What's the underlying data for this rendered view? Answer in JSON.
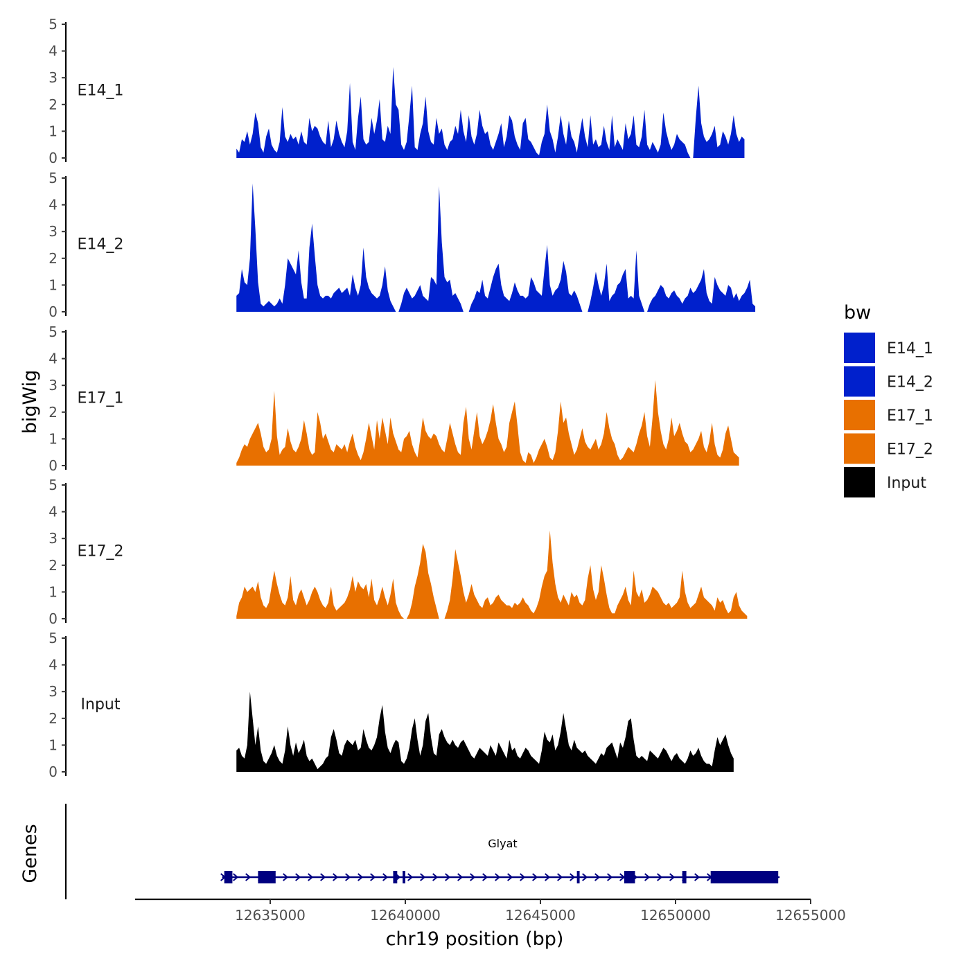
{
  "chart_data": {
    "type": "area",
    "title": "",
    "xlabel": "chr19 position (bp)",
    "ylabel": "bigWig",
    "genes_label": "Genes",
    "xlim": [
      12630000,
      12655000
    ],
    "x_ticks": [
      12635000,
      12640000,
      12645000,
      12650000,
      12655000
    ],
    "x_tick_labels": [
      "12635000",
      "12640000",
      "12645000",
      "12650000",
      "12655000"
    ],
    "ylim": [
      0,
      5
    ],
    "y_ticks": [
      0,
      1,
      2,
      3,
      4,
      5
    ],
    "y_tick_labels": [
      "0",
      "1",
      "2",
      "3",
      "4",
      "5"
    ],
    "step_bp": 100,
    "legend": {
      "title": "bw",
      "entries": [
        {
          "label": "E14_1",
          "color": "#0020CC"
        },
        {
          "label": "E14_2",
          "color": "#0020CC"
        },
        {
          "label": "E17_1",
          "color": "#E87000"
        },
        {
          "label": "E17_2",
          "color": "#E87000"
        },
        {
          "label": "Input",
          "color": "#000000"
        }
      ]
    },
    "series": [
      {
        "name": "E14_1",
        "color": "#0020CC",
        "x_start": 12633750,
        "values": [
          0.35,
          0.2,
          0.7,
          0.6,
          1.0,
          0.5,
          0.9,
          1.7,
          1.3,
          0.4,
          0.2,
          0.8,
          1.1,
          0.5,
          0.3,
          0.2,
          0.6,
          1.9,
          0.8,
          0.6,
          0.9,
          0.7,
          0.8,
          0.5,
          1.0,
          0.6,
          0.5,
          1.5,
          1.0,
          1.2,
          1.1,
          0.8,
          0.6,
          0.5,
          1.4,
          0.4,
          0.7,
          1.4,
          0.9,
          0.6,
          0.4,
          1.0,
          2.8,
          0.6,
          0.3,
          1.5,
          2.3,
          0.7,
          0.5,
          0.6,
          1.5,
          0.9,
          1.4,
          2.2,
          0.7,
          0.6,
          1.2,
          0.9,
          3.4,
          2.0,
          1.8,
          0.5,
          0.3,
          0.6,
          1.6,
          2.7,
          0.4,
          0.3,
          0.9,
          1.3,
          2.3,
          1.0,
          0.6,
          0.5,
          1.5,
          0.9,
          1.1,
          0.5,
          0.3,
          0.6,
          0.7,
          1.2,
          0.9,
          1.8,
          1.0,
          0.6,
          1.6,
          0.8,
          0.5,
          0.9,
          1.8,
          1.2,
          0.9,
          1.0,
          0.5,
          0.3,
          0.6,
          0.9,
          1.3,
          0.4,
          0.8,
          1.6,
          1.4,
          0.8,
          0.5,
          0.3,
          1.3,
          1.5,
          0.7,
          0.6,
          0.4,
          0.2,
          0.1,
          0.6,
          0.9,
          2.0,
          1.0,
          0.7,
          0.2,
          0.8,
          1.6,
          0.9,
          0.5,
          1.4,
          0.8,
          0.6,
          0.2,
          0.9,
          1.5,
          0.8,
          0.4,
          1.6,
          0.5,
          0.7,
          0.4,
          0.5,
          1.2,
          0.6,
          0.3,
          1.6,
          0.4,
          0.7,
          0.5,
          0.3,
          1.3,
          0.7,
          0.9,
          1.6,
          0.5,
          0.4,
          0.8,
          1.8,
          0.5,
          0.3,
          0.6,
          0.4,
          0.2,
          0.5,
          1.7,
          1.0,
          0.6,
          0.3,
          0.5,
          0.9,
          0.7,
          0.6,
          0.5,
          0.2,
          0.0,
          0.0,
          1.5,
          2.7,
          1.3,
          0.8,
          0.6,
          0.7,
          0.9,
          1.2,
          0.4,
          0.5,
          1.0,
          0.8,
          0.5,
          0.9,
          1.6,
          0.9,
          0.6,
          0.8,
          0.7
        ]
      },
      {
        "name": "E14_2",
        "color": "#0020CC",
        "x_start": 12633750,
        "values": [
          0.6,
          0.7,
          1.6,
          1.1,
          1.0,
          2.0,
          4.8,
          3.1,
          1.1,
          0.3,
          0.2,
          0.3,
          0.4,
          0.3,
          0.2,
          0.3,
          0.5,
          0.3,
          1.0,
          2.0,
          1.8,
          1.6,
          1.4,
          2.3,
          1.1,
          0.5,
          0.5,
          2.4,
          3.3,
          2.1,
          1.0,
          0.6,
          0.5,
          0.6,
          0.6,
          0.5,
          0.7,
          0.8,
          0.9,
          0.7,
          0.8,
          0.9,
          0.6,
          1.4,
          0.9,
          0.6,
          1.0,
          2.4,
          1.3,
          0.9,
          0.7,
          0.6,
          0.5,
          0.6,
          1.0,
          1.7,
          0.8,
          0.4,
          0.2,
          0.0,
          0.0,
          0.3,
          0.7,
          0.9,
          0.7,
          0.5,
          0.6,
          0.8,
          1.0,
          0.6,
          0.5,
          0.4,
          1.3,
          1.2,
          1.0,
          4.7,
          2.6,
          1.3,
          1.1,
          1.2,
          0.6,
          0.7,
          0.5,
          0.3,
          0.0,
          0.0,
          0.0,
          0.3,
          0.5,
          0.8,
          0.7,
          1.2,
          0.6,
          0.5,
          0.9,
          1.3,
          1.6,
          1.8,
          1.0,
          0.6,
          0.5,
          0.4,
          0.7,
          1.1,
          0.8,
          0.6,
          0.6,
          0.5,
          0.6,
          1.3,
          1.1,
          0.8,
          0.7,
          0.6,
          1.6,
          2.5,
          1.0,
          0.6,
          0.8,
          0.9,
          1.2,
          1.9,
          1.5,
          0.7,
          0.6,
          0.8,
          0.6,
          0.3,
          0.0,
          0.0,
          0.0,
          0.4,
          0.9,
          1.5,
          1.0,
          0.6,
          1.0,
          1.8,
          0.4,
          0.6,
          0.7,
          1.0,
          1.1,
          1.4,
          1.6,
          0.5,
          0.6,
          0.5,
          2.3,
          0.6,
          0.3,
          0.0,
          0.0,
          0.3,
          0.5,
          0.6,
          0.8,
          1.0,
          0.9,
          0.6,
          0.5,
          0.7,
          0.8,
          0.6,
          0.5,
          0.3,
          0.5,
          0.6,
          0.9,
          0.7,
          0.8,
          1.0,
          1.2,
          1.6,
          0.7,
          0.4,
          0.3,
          1.3,
          1.0,
          0.8,
          0.7,
          0.6,
          1.0,
          0.9,
          0.5,
          0.7,
          0.4,
          0.6,
          0.7,
          0.9,
          1.2,
          0.3,
          0.2
        ]
      },
      {
        "name": "E17_1",
        "color": "#E87000",
        "x_start": 12633750,
        "values": [
          0.1,
          0.3,
          0.6,
          0.8,
          0.7,
          1.0,
          1.2,
          1.4,
          1.6,
          1.2,
          0.7,
          0.5,
          0.6,
          1.0,
          2.8,
          1.1,
          0.4,
          0.6,
          0.7,
          1.4,
          0.9,
          0.6,
          0.5,
          0.7,
          1.0,
          1.7,
          1.2,
          0.6,
          0.4,
          0.5,
          2.0,
          1.6,
          1.0,
          1.2,
          0.9,
          0.6,
          0.5,
          0.8,
          0.7,
          0.6,
          0.8,
          0.5,
          0.9,
          1.2,
          0.7,
          0.4,
          0.2,
          0.5,
          1.0,
          1.6,
          1.1,
          0.6,
          1.7,
          1.0,
          1.8,
          1.3,
          0.8,
          1.8,
          1.2,
          0.9,
          0.6,
          0.5,
          1.0,
          1.1,
          1.3,
          0.8,
          0.5,
          0.3,
          1.0,
          1.8,
          1.3,
          1.1,
          1.0,
          1.2,
          1.1,
          0.8,
          0.6,
          0.5,
          1.0,
          1.6,
          1.2,
          0.8,
          0.5,
          0.4,
          1.6,
          2.2,
          1.0,
          0.6,
          1.3,
          2.0,
          1.1,
          0.8,
          1.0,
          1.3,
          1.7,
          2.3,
          1.6,
          1.0,
          0.8,
          0.5,
          0.7,
          1.6,
          2.0,
          2.4,
          1.5,
          0.5,
          0.2,
          0.1,
          0.5,
          0.4,
          0.1,
          0.3,
          0.6,
          0.8,
          1.0,
          0.7,
          0.3,
          0.2,
          0.5,
          1.3,
          2.4,
          1.6,
          1.8,
          1.2,
          0.8,
          0.4,
          0.6,
          1.0,
          1.4,
          0.9,
          0.7,
          0.6,
          0.8,
          1.0,
          0.6,
          0.8,
          1.2,
          2.0,
          1.4,
          1.0,
          0.8,
          0.4,
          0.2,
          0.3,
          0.5,
          0.7,
          0.6,
          0.5,
          0.8,
          1.2,
          1.5,
          2.0,
          1.1,
          0.7,
          1.8,
          3.2,
          2.0,
          1.3,
          0.8,
          0.6,
          1.0,
          1.8,
          1.1,
          1.3,
          1.6,
          1.2,
          0.9,
          0.8,
          0.5,
          0.6,
          0.8,
          1.0,
          1.3,
          0.7,
          0.5,
          0.9,
          1.6,
          0.8,
          0.4,
          0.3,
          0.6,
          1.2,
          1.5,
          1.0,
          0.5,
          0.4,
          0.3
        ]
      },
      {
        "name": "E17_2",
        "color": "#E87000",
        "x_start": 12633750,
        "values": [
          0.1,
          0.6,
          0.8,
          1.2,
          1.0,
          1.1,
          1.2,
          1.0,
          1.4,
          0.8,
          0.5,
          0.4,
          0.6,
          1.2,
          1.8,
          1.3,
          0.9,
          0.6,
          0.5,
          0.8,
          1.6,
          0.7,
          0.5,
          0.9,
          1.1,
          0.8,
          0.5,
          0.7,
          1.0,
          1.2,
          1.0,
          0.7,
          0.5,
          0.4,
          0.6,
          1.2,
          0.5,
          0.3,
          0.4,
          0.5,
          0.6,
          0.8,
          1.1,
          1.6,
          1.0,
          1.4,
          1.2,
          1.1,
          1.3,
          0.8,
          1.5,
          0.7,
          0.5,
          0.8,
          1.2,
          0.8,
          0.5,
          0.9,
          1.5,
          0.6,
          0.3,
          0.1,
          0.0,
          0.0,
          0.2,
          0.6,
          1.2,
          1.6,
          2.1,
          2.8,
          2.5,
          1.7,
          1.3,
          0.8,
          0.4,
          0.0,
          0.0,
          0.0,
          0.3,
          0.7,
          1.5,
          2.6,
          2.1,
          1.6,
          1.0,
          0.6,
          0.9,
          1.3,
          0.9,
          0.7,
          0.5,
          0.4,
          0.7,
          0.8,
          0.5,
          0.6,
          0.8,
          0.9,
          0.7,
          0.6,
          0.5,
          0.5,
          0.4,
          0.6,
          0.5,
          0.6,
          0.8,
          0.6,
          0.5,
          0.3,
          0.2,
          0.4,
          0.7,
          1.2,
          1.6,
          1.8,
          3.3,
          2.1,
          1.3,
          0.8,
          0.6,
          0.9,
          0.7,
          0.5,
          1.0,
          0.8,
          0.9,
          0.6,
          0.5,
          0.7,
          1.5,
          2.0,
          1.1,
          0.7,
          1.0,
          2.0,
          1.5,
          0.9,
          0.4,
          0.2,
          0.2,
          0.5,
          0.7,
          0.9,
          1.2,
          0.7,
          0.5,
          1.8,
          1.0,
          0.8,
          1.1,
          0.6,
          0.7,
          0.9,
          1.2,
          1.1,
          1.0,
          0.8,
          0.6,
          0.5,
          0.6,
          0.4,
          0.5,
          0.6,
          0.8,
          1.8,
          1.0,
          0.6,
          0.4,
          0.5,
          0.6,
          0.9,
          1.2,
          0.8,
          0.7,
          0.6,
          0.5,
          0.3,
          0.8,
          0.6,
          0.7,
          0.4,
          0.2,
          0.3,
          0.8,
          1.0,
          0.5,
          0.3,
          0.2,
          0.1
        ]
      },
      {
        "name": "Input",
        "color": "#000000",
        "x_start": 12633750,
        "values": [
          0.8,
          0.9,
          0.6,
          0.5,
          1.0,
          3.0,
          2.0,
          1.0,
          1.7,
          0.8,
          0.4,
          0.3,
          0.5,
          0.7,
          1.0,
          0.6,
          0.4,
          0.3,
          0.8,
          1.7,
          1.0,
          0.6,
          1.1,
          0.7,
          0.9,
          1.2,
          0.6,
          0.4,
          0.5,
          0.3,
          0.1,
          0.2,
          0.3,
          0.5,
          0.6,
          1.3,
          1.6,
          1.2,
          0.7,
          0.6,
          1.0,
          1.2,
          1.1,
          1.0,
          1.2,
          0.8,
          0.9,
          1.6,
          1.2,
          0.9,
          0.8,
          1.0,
          1.3,
          2.0,
          2.5,
          1.5,
          0.9,
          0.7,
          1.0,
          1.2,
          1.1,
          0.4,
          0.3,
          0.5,
          0.9,
          1.6,
          2.0,
          1.2,
          0.6,
          1.0,
          1.9,
          2.2,
          1.3,
          0.7,
          0.6,
          1.4,
          1.6,
          1.3,
          1.1,
          1.0,
          1.2,
          1.0,
          0.9,
          1.1,
          1.2,
          1.0,
          0.8,
          0.6,
          0.5,
          0.7,
          0.9,
          0.8,
          0.7,
          0.6,
          1.0,
          0.8,
          0.6,
          1.1,
          0.9,
          0.7,
          0.5,
          1.2,
          0.8,
          0.9,
          0.6,
          0.5,
          0.7,
          0.9,
          0.8,
          0.6,
          0.5,
          0.4,
          0.3,
          0.8,
          1.5,
          1.2,
          1.1,
          1.4,
          0.8,
          1.0,
          1.5,
          2.2,
          1.6,
          1.0,
          0.8,
          1.2,
          0.9,
          0.8,
          0.7,
          0.8,
          0.6,
          0.5,
          0.4,
          0.3,
          0.5,
          0.7,
          0.6,
          0.9,
          1.0,
          1.1,
          0.8,
          0.5,
          1.1,
          0.9,
          1.3,
          1.9,
          2.0,
          1.2,
          0.6,
          0.5,
          0.6,
          0.5,
          0.4,
          0.8,
          0.7,
          0.6,
          0.5,
          0.7,
          0.9,
          0.8,
          0.6,
          0.4,
          0.6,
          0.7,
          0.5,
          0.4,
          0.3,
          0.5,
          0.8,
          0.6,
          0.7,
          0.9,
          0.6,
          0.4,
          0.3,
          0.3,
          0.2,
          0.8,
          1.3,
          1.0,
          1.2,
          1.4,
          1.0,
          0.7,
          0.5
        ]
      }
    ],
    "gene": {
      "name": "Glyat",
      "color": "#000080",
      "start": 12633300,
      "end": 12653800,
      "strand": "+",
      "exons": [
        [
          12633300,
          12633600
        ],
        [
          12634550,
          12635200
        ],
        [
          12639550,
          12639700
        ],
        [
          12639900,
          12640000
        ],
        [
          12646350,
          12646450
        ],
        [
          12648100,
          12648500
        ],
        [
          12650250,
          12650400
        ],
        [
          12651300,
          12653800
        ]
      ]
    }
  }
}
